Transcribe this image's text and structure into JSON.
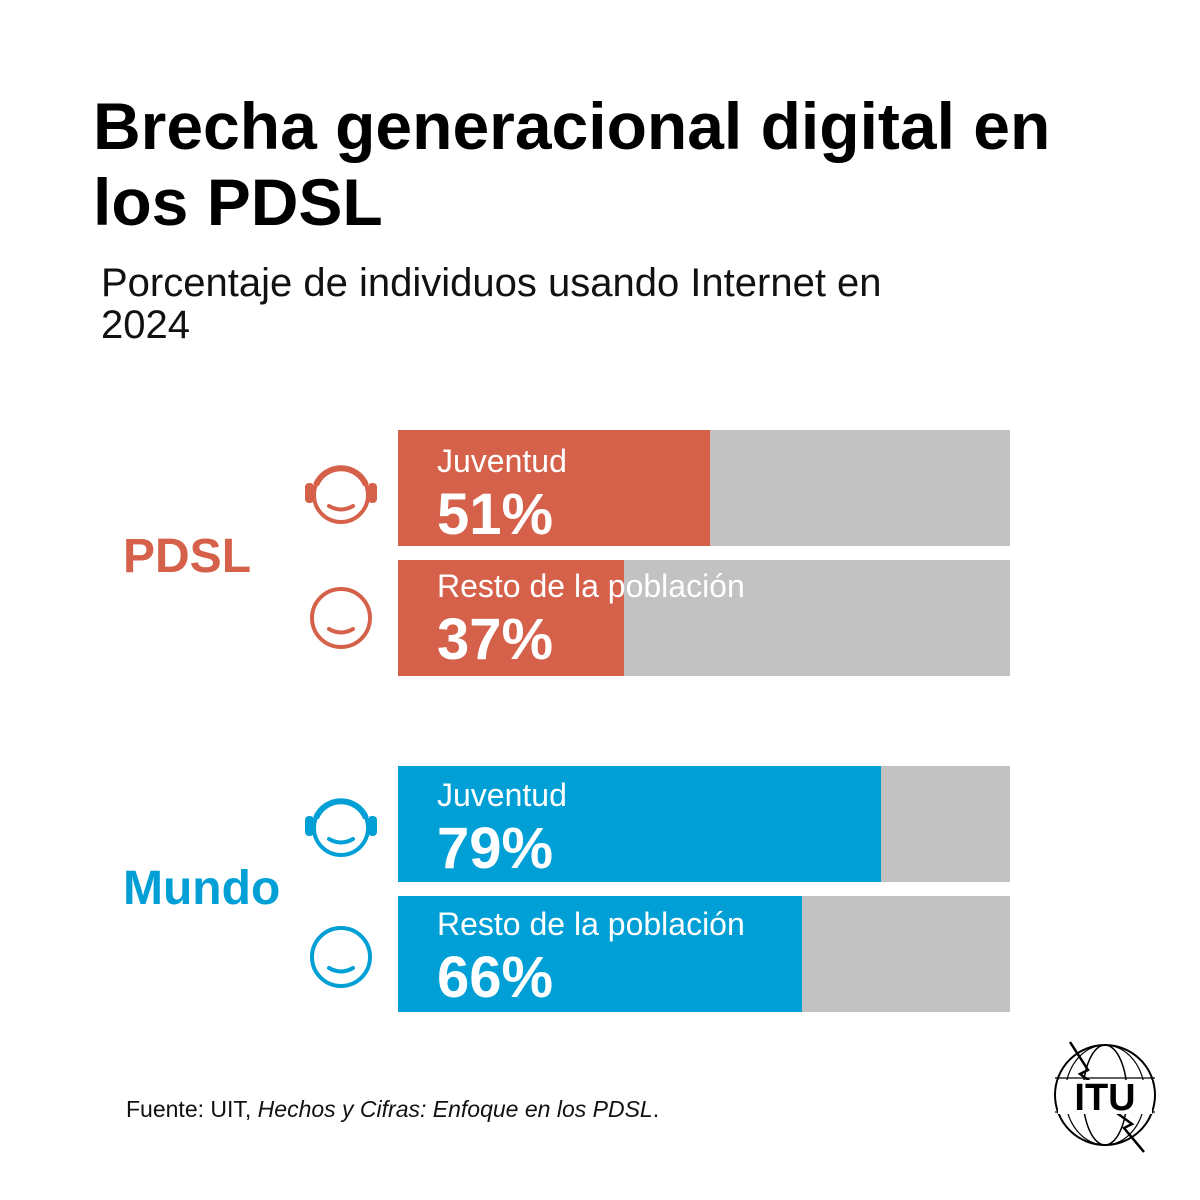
{
  "title": "Brecha generacional digital en los PDSL",
  "subtitle": "Porcentaje de individuos usando Internet en 2024",
  "colors": {
    "pdsl": "#d6614b",
    "mundo": "#009fd6",
    "track": "#c2c2c2"
  },
  "source": {
    "prefix": "Fuente: UIT, ",
    "italic": "Hechos y Cifras: Enfoque en los PDSL",
    "suffix": "."
  },
  "logo_text": "ITU",
  "chart_data": {
    "type": "bar",
    "title": "Brecha generacional digital en los PDSL",
    "subtitle": "Porcentaje de individuos usando Internet en 2024",
    "unit": "%",
    "xlim": [
      0,
      100
    ],
    "groups": [
      {
        "name": "PDSL",
        "bars": [
          {
            "category": "Juventud",
            "value": 51,
            "label": "51%",
            "icon": "youth-head-icon"
          },
          {
            "category": "Resto de la población",
            "value": 37,
            "label": "37%",
            "icon": "adult-head-icon"
          }
        ]
      },
      {
        "name": "Mundo",
        "bars": [
          {
            "category": "Juventud",
            "value": 79,
            "label": "79%",
            "icon": "youth-head-icon"
          },
          {
            "category": "Resto de la población",
            "value": 66,
            "label": "66%",
            "icon": "adult-head-icon"
          }
        ]
      }
    ]
  }
}
